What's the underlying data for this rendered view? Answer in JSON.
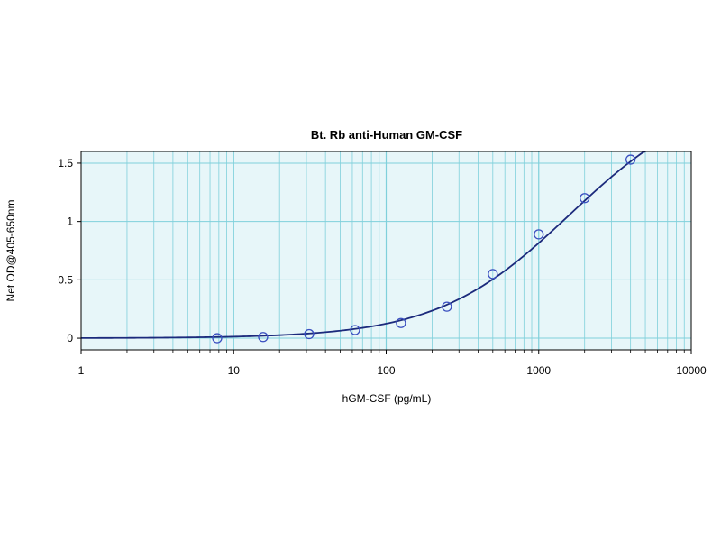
{
  "chart_data": {
    "type": "scatter",
    "title": "Bt. Rb anti-Human GM-CSF",
    "xlabel": "hGM-CSF (pg/mL)",
    "ylabel": "Net OD@405-650nm",
    "x_scale": "log",
    "xlim": [
      1,
      10000
    ],
    "ylim": [
      -0.1,
      1.6
    ],
    "x_ticks": [
      1,
      10,
      100,
      1000,
      10000
    ],
    "x_tick_labels": [
      "1",
      "10",
      "100",
      "1000",
      "10000"
    ],
    "y_ticks": [
      0,
      0.5,
      1,
      1.5
    ],
    "y_tick_labels": [
      "0",
      "0.5",
      "1",
      "1.5"
    ],
    "grid": true,
    "colors": {
      "plot_background": "#e7f6f9",
      "grid": "#7fd0db",
      "curve": "#1c2a7c",
      "marker": "#3a4fc0"
    },
    "points": {
      "x": [
        7.8,
        15.6,
        31.25,
        62.5,
        125,
        250,
        500,
        1000,
        2000,
        4000
      ],
      "y": [
        0.0,
        0.01,
        0.035,
        0.07,
        0.13,
        0.27,
        0.55,
        0.89,
        1.2,
        1.53
      ]
    },
    "fit_curve": {
      "model": "4PL",
      "bottom": 0.0,
      "top": 2.12,
      "ec50": 1600,
      "hill": 1.0
    }
  }
}
